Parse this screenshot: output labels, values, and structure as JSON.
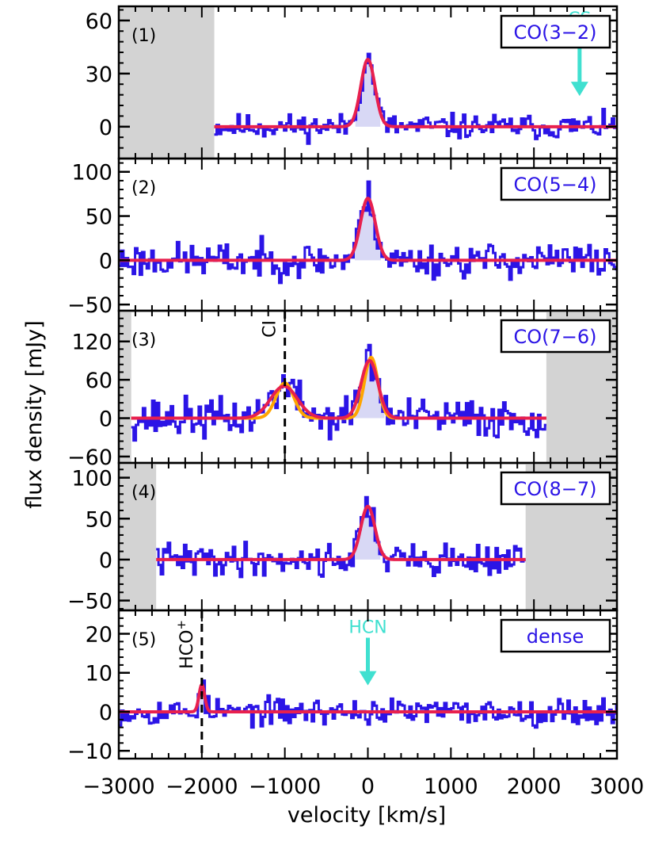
{
  "chart_data": {
    "type": "line",
    "xlabel": "velocity [km/s]",
    "ylabel": "flux density [mJy]",
    "xlim": [
      -3000,
      3000
    ],
    "xticks": [
      "−3000",
      "−2000",
      "−1000",
      "0",
      "1000",
      "2000",
      "3000"
    ],
    "colors": {
      "spectrum": "#2b14e6",
      "fill": "#d8d8f5",
      "fit": "#e8204e",
      "fit_alt": "#ffa500",
      "masked": "#d3d3d3",
      "marker": "#40e0d0"
    },
    "panels": [
      {
        "label": "(1)",
        "line": "CO(3−2)",
        "ylim": [
          -18,
          68
        ],
        "yticks": [
          0,
          30,
          60
        ],
        "tick_labels": [
          "0",
          "30",
          "60"
        ],
        "data_range": [
          -1850,
          3000
        ],
        "masked": [
          [
            -3000,
            -1850
          ]
        ],
        "fit": {
          "amp": 38,
          "center": 0,
          "fwhm": 200
        },
        "noise": 5,
        "seed": 11,
        "markers": [
          {
            "type": "arrow",
            "x": 2550,
            "y_tip": 20,
            "y_tail": 55,
            "label": "CS"
          }
        ]
      },
      {
        "label": "(2)",
        "line": "CO(5−4)",
        "ylim": [
          -57,
          115
        ],
        "yticks": [
          -50,
          0,
          50,
          100
        ],
        "tick_labels": [
          "−50",
          "0",
          "50",
          "100"
        ],
        "data_range": [
          -3000,
          3000
        ],
        "masked": [],
        "fit": {
          "amp": 70,
          "center": 0,
          "fwhm": 210
        },
        "noise": 14,
        "seed": 23,
        "markers": []
      },
      {
        "label": "(3)",
        "line": "CO(7−6)",
        "ylim": [
          -70,
          168
        ],
        "yticks": [
          -60,
          0,
          60,
          120
        ],
        "tick_labels": [
          "−60",
          "0",
          "60",
          "120"
        ],
        "data_range": [
          -2850,
          2150
        ],
        "masked": [
          [
            -3000,
            -2850
          ],
          [
            2150,
            3000
          ]
        ],
        "fit": {
          "amp": 90,
          "center": 20,
          "fwhm": 240
        },
        "fit2": {
          "amp": 50,
          "center": -1010,
          "fwhm": 380
        },
        "fit_alt": [
          {
            "amp": 95,
            "center": 40,
            "fwhm": 190
          },
          {
            "amp": 55,
            "center": -1000,
            "fwhm": 250
          }
        ],
        "noise": 22,
        "seed": 37,
        "markers": [
          {
            "type": "dashed",
            "x": -1000,
            "label": "CI"
          }
        ]
      },
      {
        "label": "(4)",
        "line": "CO(8−7)",
        "ylim": [
          -62,
          118
        ],
        "yticks": [
          -50,
          0,
          50,
          100
        ],
        "tick_labels": [
          "−50",
          "0",
          "50",
          "100"
        ],
        "data_range": [
          -2550,
          1900
        ],
        "masked": [
          [
            -3000,
            -2550
          ],
          [
            1900,
            3000
          ]
        ],
        "fit": {
          "amp": 65,
          "center": 0,
          "fwhm": 200
        },
        "noise": 14,
        "seed": 41,
        "markers": []
      },
      {
        "label": "(5)",
        "line": "dense",
        "ylim": [
          -12,
          26
        ],
        "yticks": [
          -10,
          0,
          10,
          20
        ],
        "tick_labels": [
          "−10",
          "0",
          "10",
          "20"
        ],
        "data_range": [
          -3000,
          3000
        ],
        "masked": [],
        "fit": {
          "amp": 7,
          "center": -2000,
          "fwhm": 80
        },
        "noise": 2.4,
        "seed": 53,
        "markers": [
          {
            "type": "dashed",
            "x": -2000,
            "label": "HCO",
            "sup": "+"
          },
          {
            "type": "arrow",
            "x": 0,
            "y_tip": 8,
            "y_tail": 19,
            "label": "HCN"
          }
        ]
      }
    ]
  }
}
